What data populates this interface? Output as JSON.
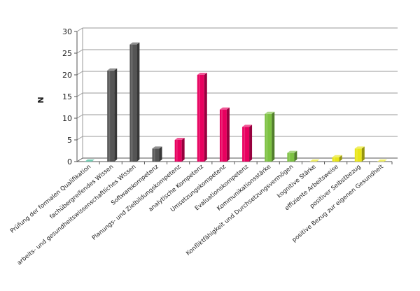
{
  "chart_data": {
    "type": "bar",
    "ylabel": "N",
    "xlabel": "",
    "ylim": [
      0,
      30
    ],
    "yticks": [
      0,
      5,
      10,
      15,
      20,
      25,
      30
    ],
    "grid": true,
    "style": "3d",
    "categories": [
      "Prüfung der formalen Qualifikation",
      "fachübergreifendes Wissen",
      "arbeits- und gesundheitswissenschaftliches Wissen",
      "Softwarekompetenz",
      "Planungs- und Zielbildungskompetenz",
      "analytische Kompetenz",
      "Umsetzungskompetenz",
      "Evaluationskompetenz",
      "Kommunikationsstärke",
      "Konfliktfähigkeit und Durchsetzungsvermögen",
      "kognitive Stärke",
      "effiziente Arbeitsweise",
      "positiver Selbstbezug",
      "positive Bezug zur eigenen Gesundheit"
    ],
    "values": [
      0,
      21,
      27,
      3,
      5,
      20,
      12,
      8,
      11,
      2,
      0,
      1,
      3,
      0
    ],
    "colors": [
      "#2bb08a",
      "#555555",
      "#555555",
      "#555555",
      "#e8005f",
      "#e8005f",
      "#e8005f",
      "#e8005f",
      "#7dc242",
      "#7dc242",
      "#e9e617",
      "#e9e617",
      "#e9e617",
      "#e9e617"
    ]
  }
}
